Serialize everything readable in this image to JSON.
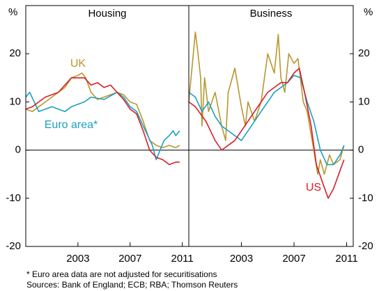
{
  "y_unit": "%",
  "footnote": "*  Euro area data are not adjusted for securitisations",
  "sources": "Sources: Bank of England; ECB; RBA; Thomson Reuters",
  "chart_data": [
    {
      "type": "line",
      "title": "Housing",
      "xlim": [
        1999,
        2011.5
      ],
      "xticks": [
        2003,
        2007,
        2011
      ],
      "ylim": [
        -20,
        30
      ],
      "yticks": [
        -20,
        -10,
        0,
        10,
        20
      ],
      "series": [
        {
          "name": "UK",
          "color": "#b8962e",
          "x": [
            1999,
            1999.5,
            2000,
            2000.5,
            2001,
            2001.5,
            2002,
            2002.5,
            2003,
            2003.3,
            2003.6,
            2004,
            2004.5,
            2005,
            2005.5,
            2006,
            2006.5,
            2007,
            2007.5,
            2008,
            2008.5,
            2009,
            2009.5,
            2010,
            2010.5,
            2010.8
          ],
          "values": [
            8.5,
            8,
            9,
            10,
            11,
            12,
            13,
            15,
            15.5,
            16,
            15,
            12,
            10.5,
            11,
            11.5,
            12,
            11.5,
            10,
            9.5,
            6,
            2,
            1,
            0.5,
            1,
            0.5,
            1
          ]
        },
        {
          "name": "Euro area*",
          "color": "#1a9fc0",
          "x": [
            1999,
            1999.3,
            2000,
            2001,
            2002,
            2002.5,
            2003.5,
            2004,
            2005,
            2006,
            2006.5,
            2007,
            2007.5,
            2008,
            2008.7,
            2009,
            2009.3,
            2009.6,
            2010,
            2010.3,
            2010.5,
            2010.8
          ],
          "values": [
            11,
            12,
            8,
            9,
            8,
            9,
            10,
            11,
            10.5,
            12,
            11,
            9,
            8,
            5,
            1,
            -2,
            0,
            2,
            3,
            4,
            3,
            4
          ]
        },
        {
          "name": "US",
          "color": "#d81e28",
          "x": [
            1999,
            1999.5,
            2000,
            2000.5,
            2001.5,
            2002,
            2002.5,
            2003.5,
            2004,
            2004.5,
            2005,
            2005.5,
            2006,
            2006.5,
            2007,
            2007.5,
            2008,
            2008.5,
            2009,
            2009.5,
            2010,
            2010.5,
            2010.8
          ],
          "values": [
            8.5,
            9,
            10,
            11,
            12,
            13.5,
            15,
            15,
            13.5,
            14,
            13,
            13.5,
            12,
            10.5,
            8.5,
            7.5,
            4,
            0,
            -1.5,
            -2,
            -3,
            -2.5,
            -2.5
          ]
        }
      ]
    },
    {
      "type": "line",
      "title": "Business",
      "xlim": [
        1999,
        2011.5
      ],
      "xticks": [
        2003,
        2007,
        2011
      ],
      "ylim": [
        -20,
        30
      ],
      "yticks": [
        -20,
        -10,
        0,
        10,
        20
      ],
      "series": [
        {
          "name": "UK",
          "color": "#b8962e",
          "x": [
            1999,
            1999.5,
            1999.7,
            1999.9,
            2000,
            2000.2,
            2000.5,
            2001,
            2001.5,
            2001.8,
            2002,
            2002.5,
            2003,
            2003.3,
            2003.5,
            2004,
            2004.5,
            2005,
            2005.5,
            2005.8,
            2006,
            2006.3,
            2006.6,
            2007,
            2007.3,
            2007.7,
            2008,
            2008.5,
            2008.8,
            2009,
            2009.3,
            2009.7,
            2010,
            2010.5,
            2010.8
          ],
          "values": [
            10,
            24.5,
            20,
            15,
            5,
            15,
            8,
            12,
            5,
            2,
            12,
            17,
            9,
            5,
            10,
            6,
            10,
            20,
            16,
            24,
            15,
            12,
            20,
            18,
            19,
            10,
            8,
            0,
            -5,
            -2,
            -5,
            -1,
            -3,
            -2,
            1
          ]
        },
        {
          "name": "Euro area*",
          "color": "#1a9fc0",
          "x": [
            1999,
            1999.5,
            2000,
            2000.5,
            2001,
            2001.5,
            2002,
            2002.5,
            2003,
            2003.5,
            2004,
            2004.5,
            2005,
            2005.5,
            2006,
            2006.5,
            2007,
            2007.5,
            2008,
            2008.5,
            2009,
            2009.5,
            2010,
            2010.5,
            2010.8
          ],
          "values": [
            12,
            11,
            8,
            10,
            7,
            5,
            4,
            3,
            2,
            4,
            6,
            8,
            10,
            12,
            13,
            14,
            15.5,
            15,
            10,
            6,
            0,
            -3,
            -3,
            -1,
            1
          ]
        },
        {
          "name": "US",
          "color": "#d81e28",
          "x": [
            1999,
            1999.5,
            2000.3,
            2001,
            2001.5,
            2002,
            2002.5,
            2003,
            2003.5,
            2004,
            2004.5,
            2005,
            2005.5,
            2006,
            2006.5,
            2007,
            2007.4,
            2007.8,
            2008.3,
            2008.7,
            2009.2,
            2009.6,
            2010,
            2010.4,
            2010.8
          ],
          "values": [
            10,
            9,
            6,
            2,
            0,
            1,
            2,
            4,
            6,
            8,
            10,
            12,
            13,
            14,
            14,
            16,
            17,
            12,
            5,
            -3,
            -7,
            -10,
            -8,
            -5,
            -2
          ]
        }
      ]
    }
  ]
}
